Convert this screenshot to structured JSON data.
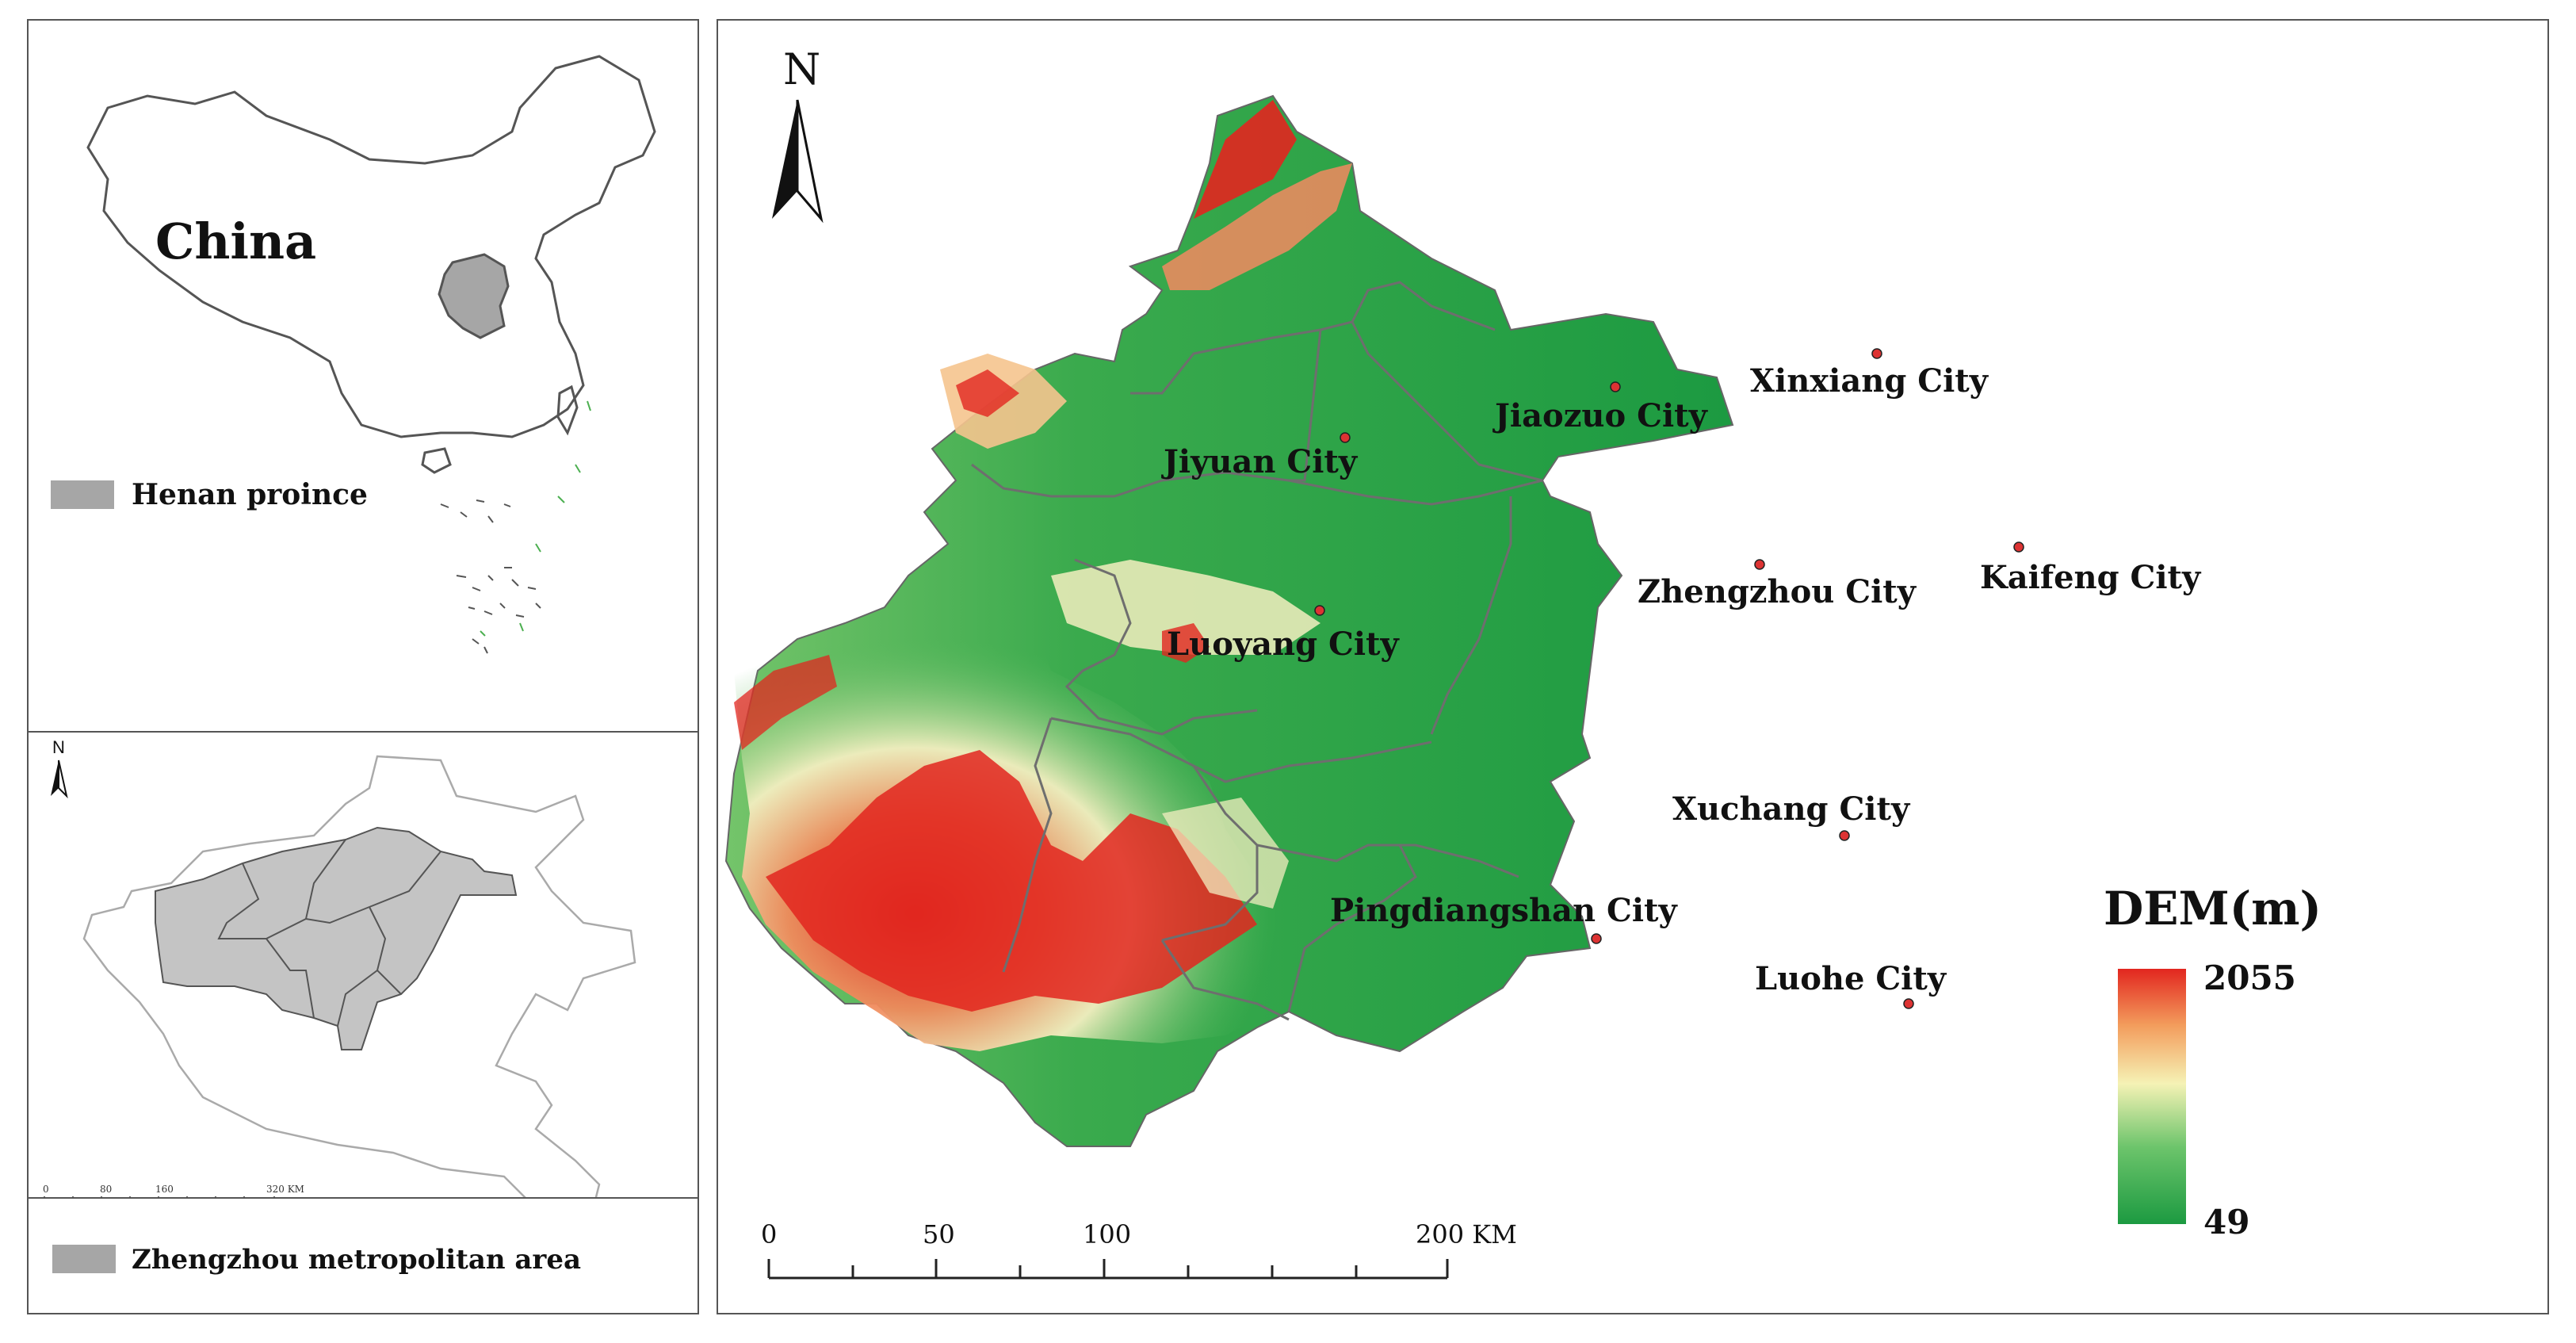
{
  "inset_china": {
    "title": "China",
    "legend_label": "Henan proince",
    "colors": {
      "province": "#a6a6a6",
      "outline": "#555555",
      "islands_green": "#4caf50"
    }
  },
  "inset_henan": {
    "north": "N",
    "scale": {
      "ticks": [
        "0",
        "80",
        "160",
        "320 KM"
      ]
    },
    "legend_label": "Zhengzhou metropolitan area",
    "colors": {
      "area": "#c4c4c4",
      "outline": "#999999"
    }
  },
  "main_map": {
    "north": "N",
    "cities": [
      {
        "name": "Jiyuan City"
      },
      {
        "name": "Jiaozuo City"
      },
      {
        "name": "Xinxiang City"
      },
      {
        "name": "Kaifeng City"
      },
      {
        "name": "Zhengzhou City"
      },
      {
        "name": "Luoyang City"
      },
      {
        "name": "Xuchang City"
      },
      {
        "name": "Pingdiangshan City"
      },
      {
        "name": "Luohe City"
      }
    ],
    "scale": {
      "ticks": [
        "0",
        "50",
        "100",
        "200 KM"
      ]
    },
    "legend": {
      "title": "DEM(m)",
      "max": "2055",
      "min": "49"
    },
    "colors": {
      "low": "#1c9a41",
      "mid": "#f5f2b5",
      "high": "#e2261f",
      "boundary": "#6e6e6e"
    }
  }
}
